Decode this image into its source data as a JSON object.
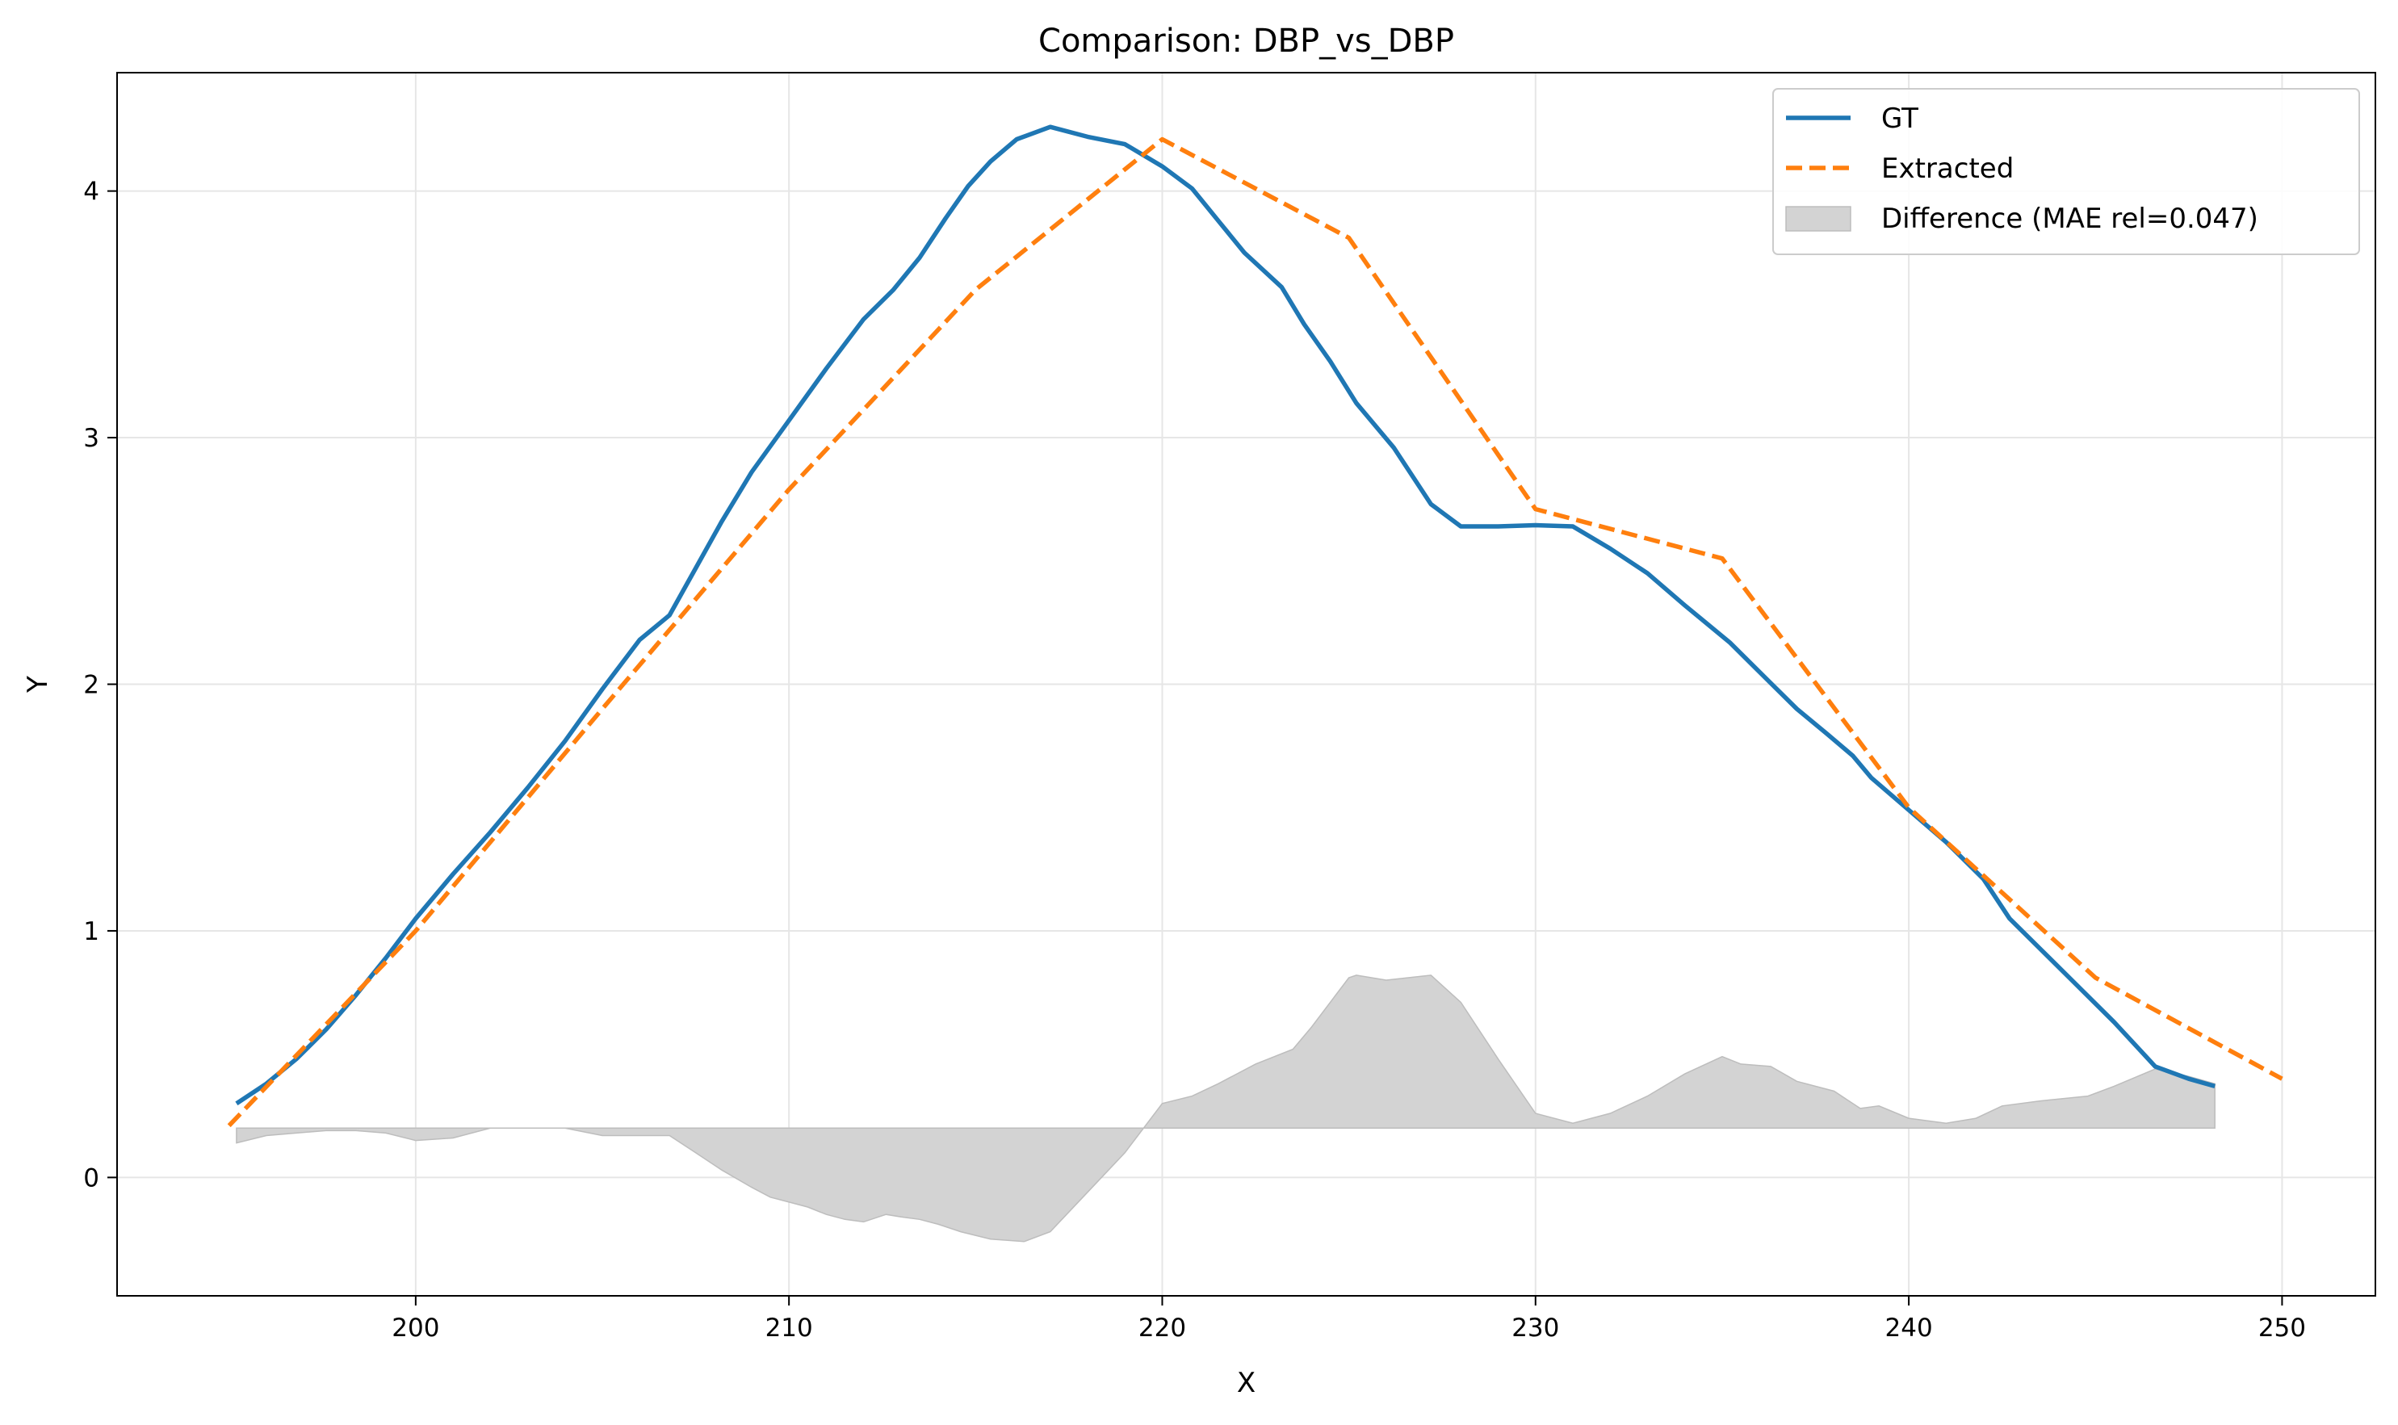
{
  "chart_data": {
    "type": "line",
    "title": "Comparison: DBP_vs_DBP",
    "xlabel": "X",
    "ylabel": "Y",
    "xlim": [
      192,
      252.5
    ],
    "ylim": [
      -0.48,
      4.48
    ],
    "xticks": [
      200,
      210,
      220,
      230,
      240,
      250
    ],
    "yticks": [
      0,
      1,
      2,
      3,
      4
    ],
    "grid": true,
    "legend_position": "top-right",
    "series": [
      {
        "name": "GT",
        "color": "#1f77b4",
        "style": "solid",
        "x": [
          195.2,
          196.0,
          196.8,
          197.6,
          198.4,
          199.2,
          200.0,
          201.0,
          202.0,
          203.0,
          204.0,
          205.0,
          206.0,
          206.8,
          207.5,
          208.2,
          209.0,
          210.0,
          211.0,
          212.0,
          212.8,
          213.5,
          214.2,
          214.8,
          215.4,
          216.1,
          217.0,
          218.0,
          219.0,
          220.0,
          220.8,
          221.5,
          222.2,
          223.2,
          223.8,
          224.5,
          225.2,
          226.2,
          227.2,
          228.0,
          229.0,
          230.0,
          231.0,
          232.0,
          233.0,
          234.0,
          235.2,
          236.2,
          237.0,
          237.8,
          238.5,
          239.0,
          240.0,
          241.0,
          242.0,
          242.7,
          243.5,
          244.5,
          245.5,
          246.6,
          247.5,
          248.2
        ],
        "y": [
          0.3,
          0.38,
          0.48,
          0.6,
          0.74,
          0.89,
          1.05,
          1.23,
          1.4,
          1.58,
          1.77,
          1.98,
          2.18,
          2.28,
          2.47,
          2.66,
          2.86,
          3.07,
          3.28,
          3.48,
          3.6,
          3.73,
          3.89,
          4.02,
          4.12,
          4.21,
          4.26,
          4.22,
          4.19,
          4.1,
          4.01,
          3.88,
          3.75,
          3.61,
          3.46,
          3.31,
          3.14,
          2.96,
          2.73,
          2.64,
          2.64,
          2.645,
          2.64,
          2.55,
          2.45,
          2.32,
          2.17,
          2.02,
          1.9,
          1.8,
          1.71,
          1.62,
          1.49,
          1.36,
          1.21,
          1.05,
          0.93,
          0.78,
          0.63,
          0.45,
          0.4,
          0.37
        ]
      },
      {
        "name": "Extracted",
        "color": "#ff7f0e",
        "style": "dashed",
        "x": [
          195.0,
          200.0,
          205.0,
          210.0,
          215.0,
          220.0,
          225.0,
          230.0,
          235.0,
          240.0,
          245.0,
          250.0
        ],
        "y": [
          0.21,
          1.0,
          1.9,
          2.79,
          3.6,
          4.21,
          3.81,
          2.71,
          2.51,
          1.5,
          0.81,
          0.4
        ]
      },
      {
        "name": "Difference (MAE rel=0.047)",
        "color": "#b0b0b0",
        "style": "fill",
        "baseline": 0.2,
        "x": [
          195.2,
          196.0,
          196.8,
          197.6,
          198.4,
          199.2,
          200.0,
          201.0,
          202.0,
          203.0,
          204.0,
          205.0,
          206.0,
          206.8,
          207.5,
          208.2,
          209.0,
          209.5,
          210.0,
          210.5,
          211.0,
          211.5,
          212.0,
          212.6,
          213.0,
          213.5,
          214.0,
          214.6,
          215.4,
          216.3,
          217.0,
          218.0,
          219.0,
          220.0,
          220.8,
          221.5,
          222.5,
          223.5,
          224.0,
          225.0,
          225.2,
          226.0,
          227.2,
          228.0,
          229.0,
          230.0,
          231.0,
          232.0,
          233.0,
          234.0,
          235.0,
          235.5,
          236.3,
          237.0,
          238.0,
          238.7,
          239.2,
          240.0,
          241.0,
          241.8,
          242.5,
          243.5,
          244.8,
          245.5,
          246.6,
          247.5,
          248.2
        ],
        "y": [
          0.14,
          0.17,
          0.18,
          0.19,
          0.19,
          0.18,
          0.15,
          0.16,
          0.2,
          0.2,
          0.2,
          0.17,
          0.17,
          0.17,
          0.1,
          0.03,
          -0.04,
          -0.08,
          -0.1,
          -0.12,
          -0.15,
          -0.17,
          -0.18,
          -0.15,
          -0.16,
          -0.17,
          -0.19,
          -0.22,
          -0.25,
          -0.26,
          -0.22,
          -0.06,
          0.1,
          0.3,
          0.33,
          0.38,
          0.46,
          0.52,
          0.61,
          0.81,
          0.82,
          0.8,
          0.82,
          0.71,
          0.48,
          0.26,
          0.22,
          0.26,
          0.33,
          0.42,
          0.49,
          0.46,
          0.45,
          0.39,
          0.35,
          0.28,
          0.29,
          0.24,
          0.22,
          0.24,
          0.29,
          0.31,
          0.33,
          0.37,
          0.44,
          0.41,
          0.38
        ]
      }
    ]
  }
}
